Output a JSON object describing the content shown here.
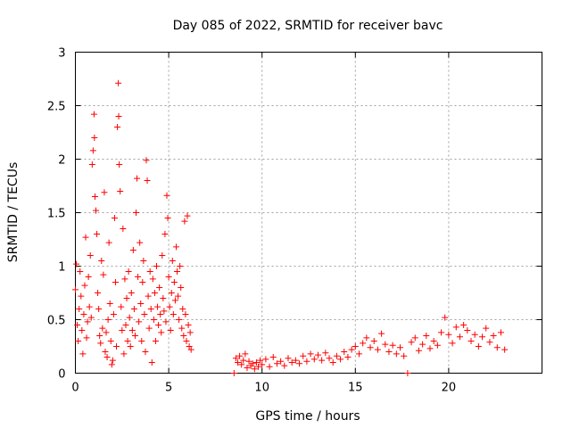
{
  "chart_data": {
    "type": "scatter",
    "title": "Day 085 of 2022, SRMTID for receiver bavc",
    "xlabel": "GPS time / hours",
    "ylabel": "SRMTID / TECUs",
    "xlim": [
      0,
      25
    ],
    "ylim": [
      0,
      3
    ],
    "xticks": [
      0,
      5,
      10,
      15,
      20
    ],
    "yticks": [
      0,
      0.5,
      1,
      1.5,
      2,
      2.5,
      3
    ],
    "xtick_labels": [
      "0",
      "5",
      "10",
      "15",
      "20"
    ],
    "ytick_labels": [
      "0",
      "0.5",
      "1",
      "1.5",
      "2",
      "2.5",
      "3"
    ],
    "grid": true,
    "marker": "plus",
    "color": "#ff0000",
    "series": [
      {
        "name": "SRMTID",
        "points": [
          [
            0.0,
            0.78
          ],
          [
            0.05,
            1.02
          ],
          [
            0.1,
            0.45
          ],
          [
            0.15,
            0.3
          ],
          [
            0.2,
            0.6
          ],
          [
            0.25,
            0.95
          ],
          [
            0.3,
            0.72
          ],
          [
            0.35,
            0.4
          ],
          [
            0.4,
            0.18
          ],
          [
            0.45,
            0.55
          ],
          [
            0.5,
            0.82
          ],
          [
            0.55,
            1.27
          ],
          [
            0.6,
            0.33
          ],
          [
            0.65,
            0.48
          ],
          [
            0.7,
            0.9
          ],
          [
            0.75,
            0.62
          ],
          [
            0.8,
            1.1
          ],
          [
            0.85,
            0.52
          ],
          [
            0.9,
            1.95
          ],
          [
            0.95,
            2.08
          ],
          [
            1.0,
            2.42
          ],
          [
            1.02,
            2.2
          ],
          [
            1.05,
            1.65
          ],
          [
            1.1,
            1.52
          ],
          [
            1.15,
            1.3
          ],
          [
            1.2,
            0.75
          ],
          [
            1.25,
            0.6
          ],
          [
            1.3,
            0.35
          ],
          [
            1.35,
            0.28
          ],
          [
            1.4,
            1.05
          ],
          [
            1.45,
            0.42
          ],
          [
            1.5,
            0.92
          ],
          [
            1.55,
            1.69
          ],
          [
            1.6,
            0.2
          ],
          [
            1.65,
            0.38
          ],
          [
            1.7,
            0.15
          ],
          [
            1.75,
            0.5
          ],
          [
            1.8,
            1.22
          ],
          [
            1.85,
            0.65
          ],
          [
            1.9,
            0.3
          ],
          [
            1.95,
            0.08
          ],
          [
            2.0,
            0.12
          ],
          [
            2.05,
            0.55
          ],
          [
            2.1,
            1.45
          ],
          [
            2.15,
            0.85
          ],
          [
            2.2,
            0.25
          ],
          [
            2.25,
            2.3
          ],
          [
            2.3,
            2.71
          ],
          [
            2.32,
            2.4
          ],
          [
            2.35,
            1.95
          ],
          [
            2.4,
            1.7
          ],
          [
            2.45,
            0.62
          ],
          [
            2.5,
            0.4
          ],
          [
            2.55,
            1.35
          ],
          [
            2.6,
            0.18
          ],
          [
            2.65,
            0.88
          ],
          [
            2.7,
            0.45
          ],
          [
            2.75,
            0.7
          ],
          [
            2.8,
            0.3
          ],
          [
            2.85,
            0.95
          ],
          [
            2.9,
            0.52
          ],
          [
            2.95,
            0.25
          ],
          [
            3.0,
            0.75
          ],
          [
            3.05,
            0.4
          ],
          [
            3.1,
            1.15
          ],
          [
            3.15,
            0.6
          ],
          [
            3.2,
            0.35
          ],
          [
            3.25,
            1.5
          ],
          [
            3.3,
            1.82
          ],
          [
            3.35,
            0.9
          ],
          [
            3.4,
            0.48
          ],
          [
            3.45,
            1.22
          ],
          [
            3.5,
            0.65
          ],
          [
            3.55,
            0.3
          ],
          [
            3.6,
            0.85
          ],
          [
            3.65,
            1.05
          ],
          [
            3.7,
            0.55
          ],
          [
            3.75,
            0.2
          ],
          [
            3.8,
            1.99
          ],
          [
            3.85,
            1.8
          ],
          [
            3.9,
            0.72
          ],
          [
            3.95,
            0.42
          ],
          [
            4.0,
            0.95
          ],
          [
            4.05,
            0.6
          ],
          [
            4.1,
            0.1
          ],
          [
            4.15,
            0.88
          ],
          [
            4.2,
            0.5
          ],
          [
            4.25,
            0.75
          ],
          [
            4.3,
            0.3
          ],
          [
            4.35,
            1.0
          ],
          [
            4.4,
            0.62
          ],
          [
            4.45,
            0.45
          ],
          [
            4.5,
            0.8
          ],
          [
            4.55,
            0.55
          ],
          [
            4.6,
            0.38
          ],
          [
            4.65,
            1.1
          ],
          [
            4.7,
            0.7
          ],
          [
            4.75,
            0.58
          ],
          [
            4.8,
            1.3
          ],
          [
            4.85,
            0.48
          ],
          [
            4.9,
            1.66
          ],
          [
            4.95,
            1.45
          ],
          [
            5.0,
            0.9
          ],
          [
            5.05,
            0.62
          ],
          [
            5.1,
            0.4
          ],
          [
            5.15,
            0.75
          ],
          [
            5.2,
            1.05
          ],
          [
            5.25,
            0.55
          ],
          [
            5.3,
            0.85
          ],
          [
            5.35,
            0.68
          ],
          [
            5.4,
            1.18
          ],
          [
            5.45,
            0.95
          ],
          [
            5.5,
            0.72
          ],
          [
            5.55,
            0.5
          ],
          [
            5.6,
            1.0
          ],
          [
            5.65,
            0.8
          ],
          [
            5.7,
            0.42
          ],
          [
            5.75,
            0.6
          ],
          [
            5.8,
            0.35
          ],
          [
            5.85,
            1.42
          ],
          [
            5.9,
            0.55
          ],
          [
            5.95,
            0.3
          ],
          [
            6.0,
            1.47
          ],
          [
            6.05,
            0.45
          ],
          [
            6.1,
            0.25
          ],
          [
            6.15,
            0.38
          ],
          [
            6.2,
            0.22
          ],
          [
            8.5,
            0.0
          ],
          [
            8.6,
            0.14
          ],
          [
            8.7,
            0.1
          ],
          [
            8.8,
            0.16
          ],
          [
            8.9,
            0.08
          ],
          [
            9.0,
            0.12
          ],
          [
            9.1,
            0.18
          ],
          [
            9.2,
            0.05
          ],
          [
            9.3,
            0.11
          ],
          [
            9.4,
            0.07
          ],
          [
            9.5,
            0.09
          ],
          [
            9.6,
            0.04
          ],
          [
            9.7,
            0.1
          ],
          [
            9.8,
            0.06
          ],
          [
            9.9,
            0.12
          ],
          [
            10.0,
            0.08
          ],
          [
            10.2,
            0.13
          ],
          [
            10.4,
            0.06
          ],
          [
            10.6,
            0.15
          ],
          [
            10.8,
            0.09
          ],
          [
            11.0,
            0.11
          ],
          [
            11.2,
            0.07
          ],
          [
            11.4,
            0.14
          ],
          [
            11.6,
            0.1
          ],
          [
            11.8,
            0.12
          ],
          [
            12.0,
            0.09
          ],
          [
            12.2,
            0.16
          ],
          [
            12.4,
            0.11
          ],
          [
            12.6,
            0.18
          ],
          [
            12.8,
            0.13
          ],
          [
            13.0,
            0.17
          ],
          [
            13.2,
            0.12
          ],
          [
            13.4,
            0.19
          ],
          [
            13.6,
            0.14
          ],
          [
            13.8,
            0.1
          ],
          [
            14.0,
            0.16
          ],
          [
            14.2,
            0.13
          ],
          [
            14.4,
            0.2
          ],
          [
            14.6,
            0.15
          ],
          [
            14.8,
            0.22
          ],
          [
            15.0,
            0.25
          ],
          [
            15.2,
            0.18
          ],
          [
            15.4,
            0.28
          ],
          [
            15.6,
            0.33
          ],
          [
            15.8,
            0.24
          ],
          [
            16.0,
            0.3
          ],
          [
            16.2,
            0.22
          ],
          [
            16.4,
            0.37
          ],
          [
            16.6,
            0.27
          ],
          [
            16.8,
            0.2
          ],
          [
            17.0,
            0.26
          ],
          [
            17.2,
            0.18
          ],
          [
            17.4,
            0.24
          ],
          [
            17.6,
            0.16
          ],
          [
            17.8,
            0.0
          ],
          [
            18.0,
            0.29
          ],
          [
            18.2,
            0.33
          ],
          [
            18.4,
            0.21
          ],
          [
            18.6,
            0.27
          ],
          [
            18.8,
            0.35
          ],
          [
            19.0,
            0.23
          ],
          [
            19.2,
            0.3
          ],
          [
            19.4,
            0.26
          ],
          [
            19.6,
            0.38
          ],
          [
            19.8,
            0.52
          ],
          [
            20.0,
            0.36
          ],
          [
            20.2,
            0.28
          ],
          [
            20.4,
            0.43
          ],
          [
            20.6,
            0.34
          ],
          [
            20.8,
            0.45
          ],
          [
            21.0,
            0.4
          ],
          [
            21.2,
            0.3
          ],
          [
            21.4,
            0.36
          ],
          [
            21.6,
            0.25
          ],
          [
            21.8,
            0.34
          ],
          [
            22.0,
            0.42
          ],
          [
            22.2,
            0.29
          ],
          [
            22.4,
            0.35
          ],
          [
            22.6,
            0.24
          ],
          [
            22.8,
            0.38
          ],
          [
            23.0,
            0.22
          ]
        ]
      }
    ]
  }
}
